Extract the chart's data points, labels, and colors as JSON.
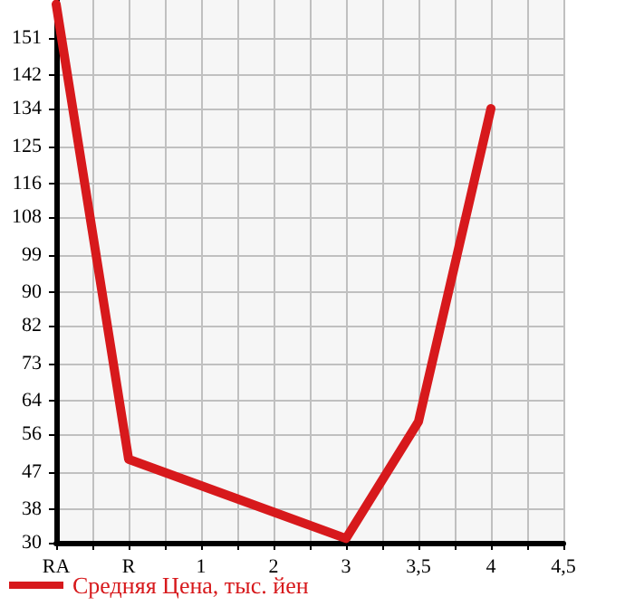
{
  "chart_data": {
    "type": "line",
    "categories": [
      "RA",
      "R",
      "1",
      "2",
      "3",
      "3,5",
      "4",
      "4,5"
    ],
    "series": [
      {
        "name": "Средняя Цена, тыс. йен",
        "color": "#d7191c",
        "values": [
          159,
          50,
          null,
          null,
          31,
          59,
          134,
          null
        ]
      }
    ],
    "ylim": [
      30,
      160
    ],
    "yticks": [
      30,
      38,
      47,
      56,
      64,
      73,
      82,
      90,
      99,
      108,
      116,
      125,
      134,
      142,
      151
    ],
    "grid": true,
    "legend": "bottom left",
    "marker": "none",
    "line_style": "solid"
  }
}
